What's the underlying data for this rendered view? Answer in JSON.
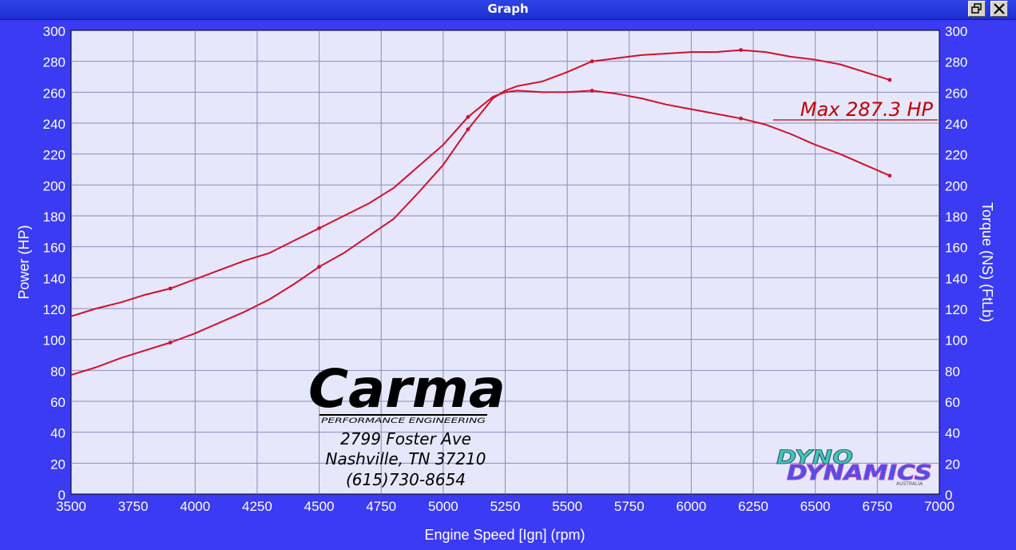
{
  "window": {
    "title": "Graph"
  },
  "chart_data": {
    "type": "line",
    "title": "",
    "xlabel": "Engine Speed [Ign] (rpm)",
    "ylabel": "Power (HP)",
    "y2label": "Torque (NS) (FtLb)",
    "xlim": [
      3500,
      7000
    ],
    "ylim": [
      0,
      300
    ],
    "y2lim": [
      0,
      300
    ],
    "xticks": [
      3500,
      3750,
      4000,
      4250,
      4500,
      4750,
      5000,
      5250,
      5500,
      5750,
      6000,
      6250,
      6500,
      6750,
      7000
    ],
    "yticks": [
      0,
      20,
      40,
      60,
      80,
      100,
      120,
      140,
      160,
      180,
      200,
      220,
      240,
      260,
      280,
      300
    ],
    "grid": true,
    "series": [
      {
        "name": "",
        "axis": "left",
        "color": "#d2102a",
        "x": [
          3500,
          3600,
          3700,
          3800,
          3900,
          4000,
          4100,
          4200,
          4300,
          4400,
          4500,
          4600,
          4700,
          4800,
          4900,
          5000,
          5100,
          5200,
          5250,
          5300,
          5400,
          5500,
          5600,
          5700,
          5800,
          5900,
          6000,
          6100,
          6200,
          6300,
          6400,
          6500,
          6600,
          6700,
          6800
        ],
        "y": [
          77,
          82,
          88,
          93,
          98,
          104,
          111,
          118,
          126,
          136,
          147,
          156,
          167,
          178,
          195,
          213,
          236,
          256,
          261,
          264,
          267,
          273,
          280,
          282,
          284,
          285,
          286,
          286,
          287.3,
          286,
          283,
          281,
          278,
          273,
          268
        ]
      },
      {
        "name": "",
        "axis": "right",
        "color": "#d2102a",
        "x": [
          3500,
          3600,
          3700,
          3800,
          3900,
          4000,
          4100,
          4200,
          4300,
          4400,
          4500,
          4600,
          4700,
          4800,
          4900,
          5000,
          5100,
          5200,
          5250,
          5300,
          5400,
          5500,
          5600,
          5700,
          5800,
          5900,
          6000,
          6100,
          6200,
          6300,
          6400,
          6500,
          6600,
          6700,
          6800
        ],
        "y": [
          115,
          120,
          124,
          129,
          133,
          139,
          145,
          151,
          156,
          164,
          172,
          180,
          188,
          198,
          212,
          226,
          244,
          257,
          260,
          261,
          260,
          260,
          261,
          259,
          256,
          252,
          249,
          246,
          243,
          239,
          233,
          226,
          220,
          213,
          206
        ]
      }
    ],
    "annotation": {
      "text": "Max 287.3 HP",
      "color": "#c20000"
    },
    "logo": {
      "brand": "Carma",
      "tagline": "PERFORMANCE ENGINEERING",
      "address_line1": "2799 Foster Ave",
      "address_line2": "Nashville, TN 37210",
      "phone": "(615)730-8654"
    },
    "watermark": {
      "line1": "DYNO",
      "line2": "DYNAMICS",
      "sub": "AUSTRALIA"
    }
  }
}
